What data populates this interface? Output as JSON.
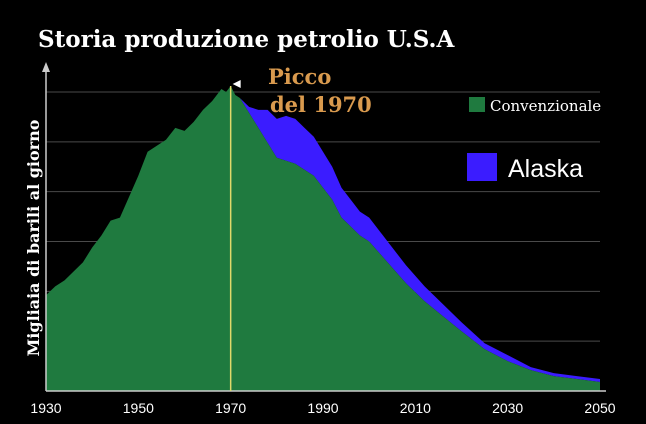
{
  "chart_data": {
    "type": "area",
    "title": "Storia produzione petrolio U.S.A",
    "ylabel": "Migliaia di barili al giorno",
    "xlabel": "",
    "xlim": [
      1930,
      2050
    ],
    "ylim": [
      0,
      100
    ],
    "x_ticks": [
      "1930",
      "1950",
      "1970",
      "1990",
      "2010",
      "2030",
      "2050"
    ],
    "grid": true,
    "legend_position": "right",
    "annotation": {
      "x": 1970,
      "line1": "Picco",
      "line2": "del 1970"
    },
    "colors": {
      "conv": "#1f7a3f",
      "alaska": "#3b1cff",
      "peak_text": "#d99a4e",
      "peak_line": "#e0d96a",
      "grid": "#4a4a4a"
    },
    "series": [
      {
        "name": "Convenzionale",
        "x": [
          1930,
          1932,
          1934,
          1936,
          1938,
          1940,
          1942,
          1944,
          1946,
          1948,
          1950,
          1952,
          1954,
          1956,
          1958,
          1960,
          1962,
          1964,
          1966,
          1968,
          1969,
          1970,
          1971,
          1972,
          1974,
          1976,
          1978,
          1980,
          1982,
          1984,
          1986,
          1988,
          1990,
          1992,
          1994,
          1996,
          1998,
          2000,
          2004,
          2008,
          2012,
          2016,
          2020,
          2025,
          2030,
          2035,
          2040,
          2045,
          2050
        ],
        "values": [
          32,
          35,
          37,
          40,
          43,
          48,
          52,
          57,
          58,
          65,
          72,
          80,
          82,
          84,
          88,
          87,
          90,
          94,
          97,
          101,
          100,
          102,
          99,
          98,
          93,
          88,
          83,
          78,
          77,
          76,
          74,
          72,
          68,
          64,
          58,
          55,
          52,
          50,
          43,
          36,
          30,
          25,
          20,
          14,
          10,
          7,
          5,
          4,
          3
        ]
      },
      {
        "name": "Alaska",
        "x": [
          1930,
          1970,
          1972,
          1974,
          1976,
          1978,
          1980,
          1982,
          1984,
          1986,
          1988,
          1990,
          1992,
          1994,
          1996,
          1998,
          2000,
          2004,
          2008,
          2012,
          2016,
          2020,
          2025,
          2030,
          2035,
          2040,
          2045,
          2050
        ],
        "values": [
          0,
          0,
          0,
          2,
          6,
          11,
          13,
          15,
          15,
          14,
          13,
          12,
          11,
          10,
          9,
          8,
          8,
          7,
          6,
          5,
          4,
          3,
          2,
          2,
          1,
          1,
          1,
          1
        ]
      }
    ]
  }
}
